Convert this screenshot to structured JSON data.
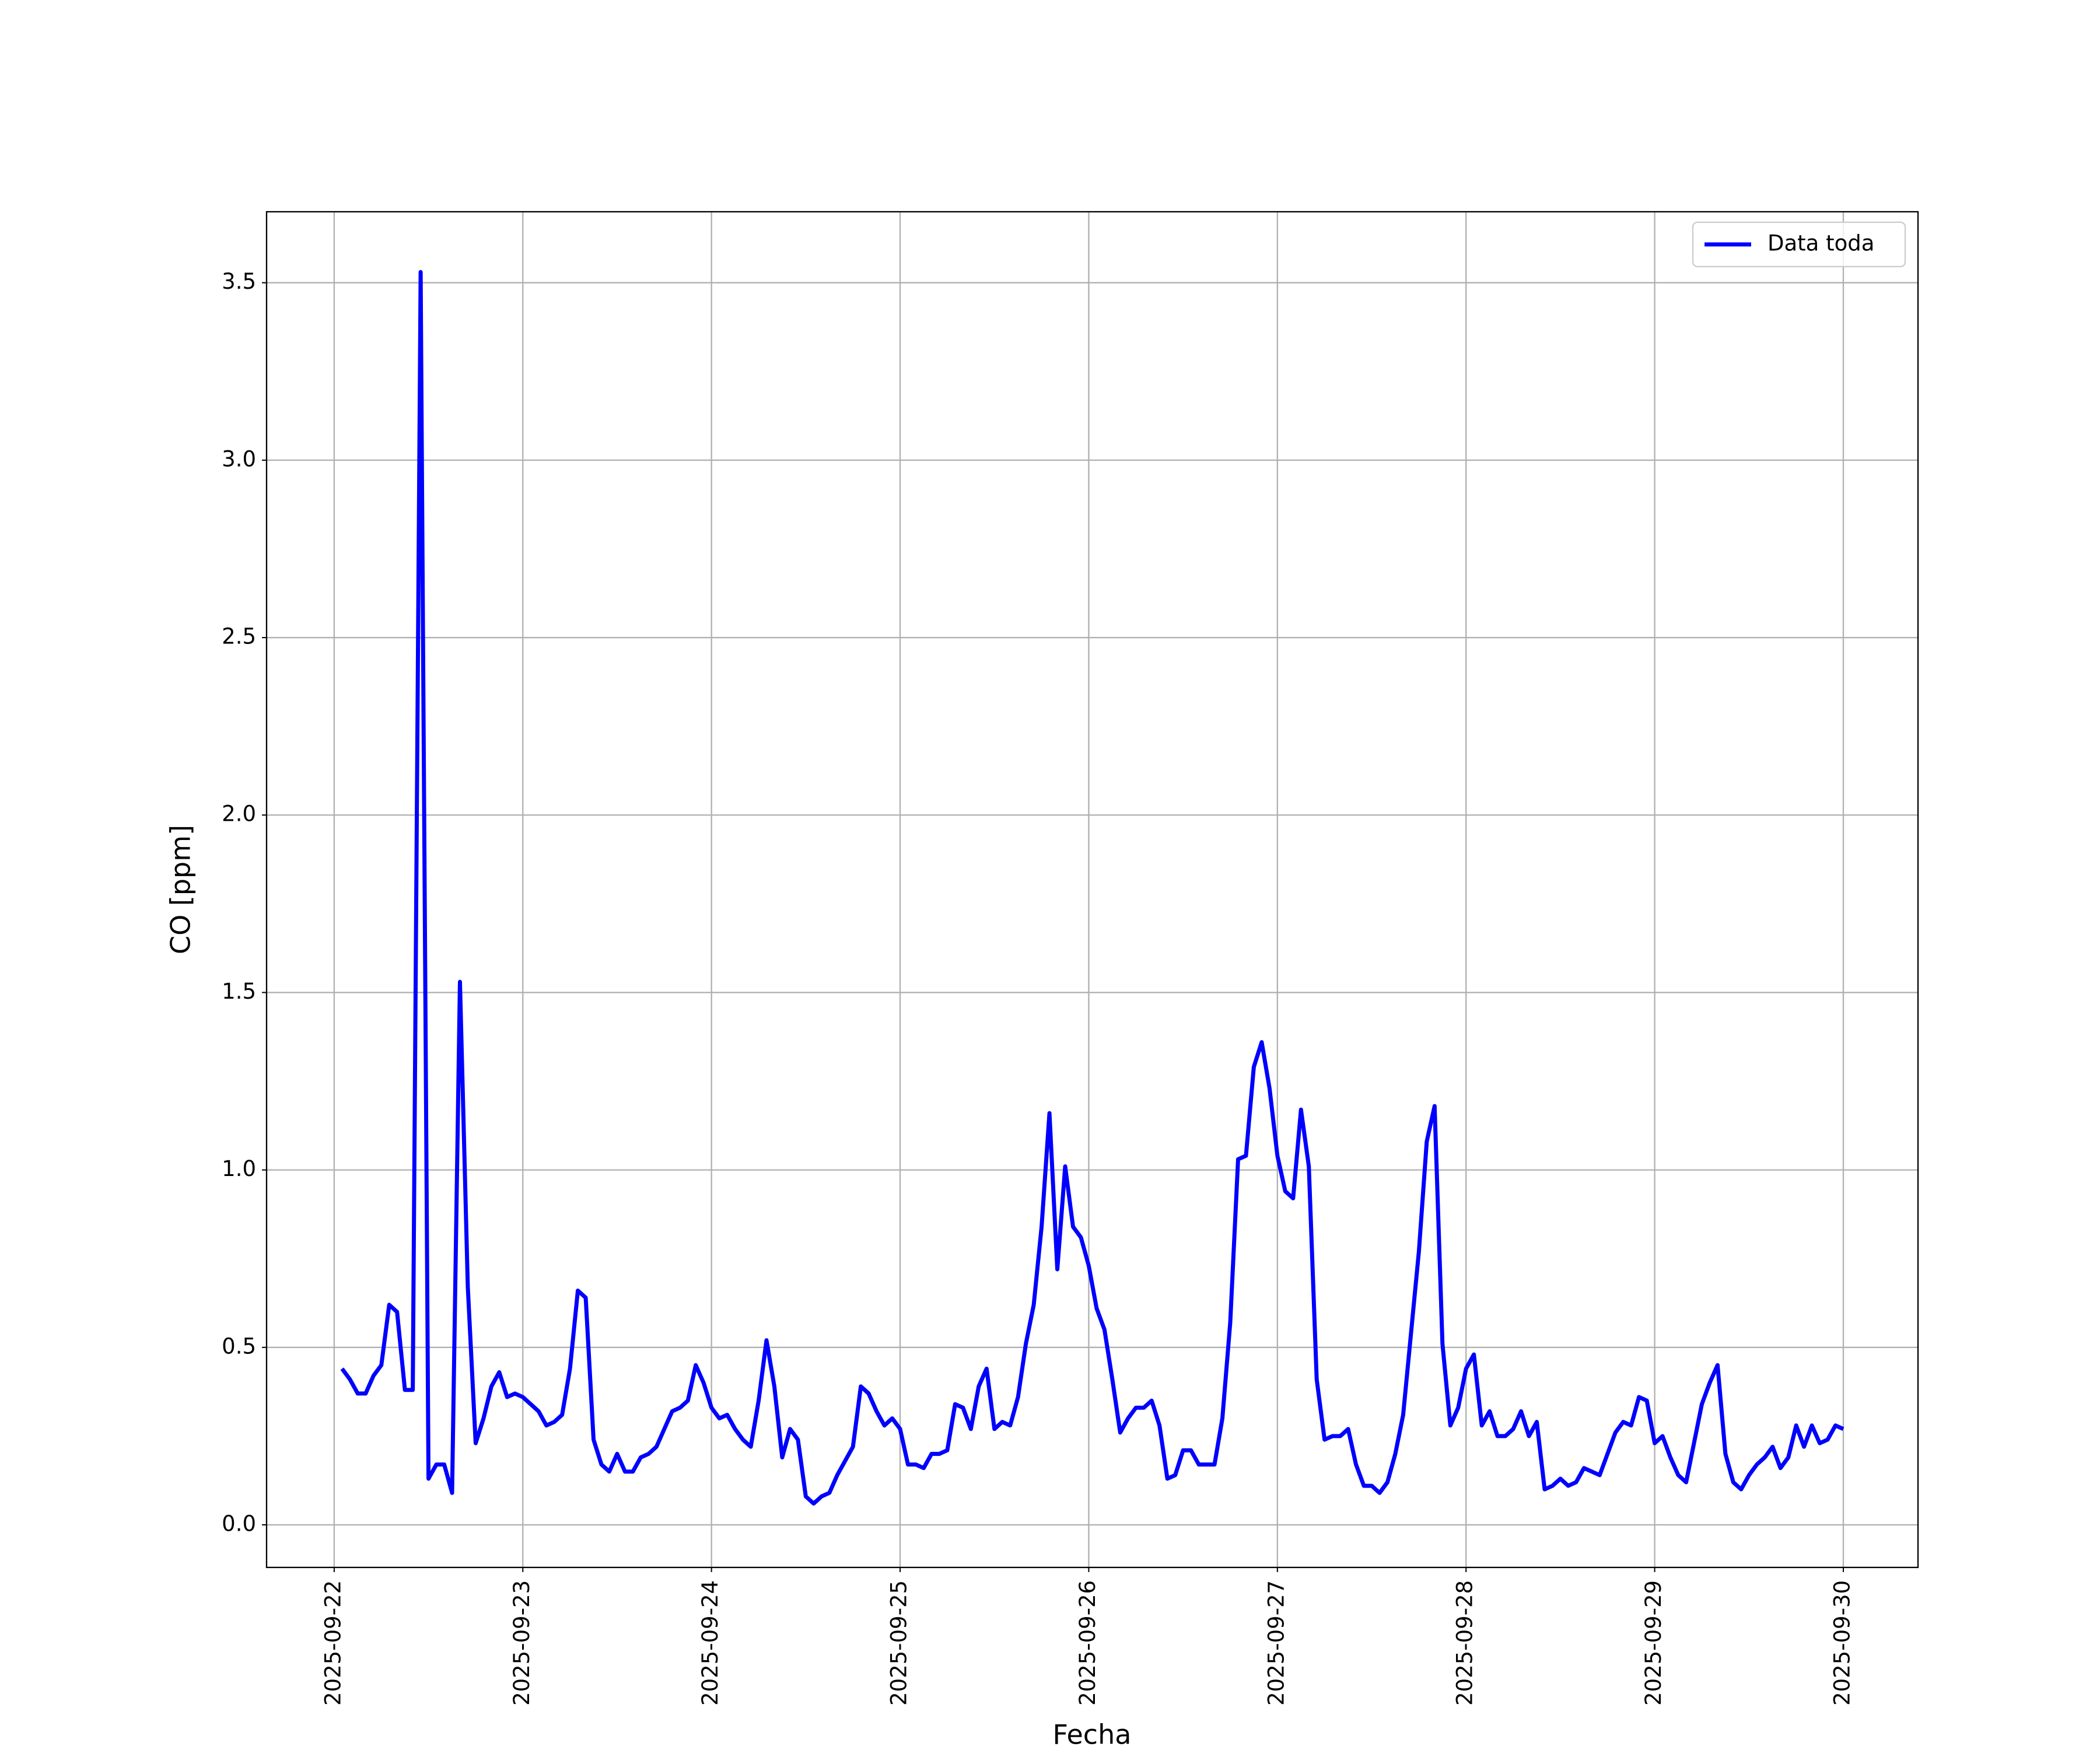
{
  "chart_data": {
    "type": "line",
    "xlabel": "Fecha",
    "ylabel": "CO [ppm]",
    "x": [
      1,
      2,
      3,
      4,
      5,
      6,
      7,
      8,
      9,
      10,
      11,
      12,
      13,
      14,
      15,
      16,
      17,
      18,
      19,
      20,
      21,
      22,
      23,
      24,
      25,
      26,
      27,
      28,
      29,
      30,
      31,
      32,
      33,
      34,
      35,
      36,
      37,
      38,
      39,
      40,
      41,
      42,
      43,
      44,
      45,
      46,
      47,
      48,
      49,
      50,
      51,
      52,
      53,
      54,
      55,
      56,
      57,
      58,
      59,
      60,
      61,
      62,
      63,
      64,
      65,
      66,
      67,
      68,
      69,
      70,
      71,
      72,
      73,
      74,
      75,
      76,
      77,
      78,
      79,
      80,
      81,
      82,
      83,
      84,
      85,
      86,
      87,
      88,
      89,
      90,
      91,
      92,
      93,
      94,
      95,
      96,
      97,
      98,
      99,
      100,
      101,
      102,
      103,
      104,
      105,
      106,
      107,
      108,
      109,
      110,
      111,
      112,
      113,
      114,
      115,
      116,
      117,
      118,
      119,
      120,
      121,
      122,
      123,
      124,
      125,
      126,
      127,
      128,
      129,
      130,
      131,
      132,
      133,
      134,
      135,
      136,
      137,
      138,
      139,
      140,
      141,
      142,
      143,
      144,
      145,
      146,
      147,
      148,
      149,
      150,
      151,
      152,
      153,
      154,
      155,
      156,
      157,
      158,
      159,
      160,
      161,
      162,
      163,
      164,
      165,
      166,
      167,
      168,
      169,
      170,
      171,
      172,
      173,
      174,
      175,
      176,
      177,
      178,
      179,
      180,
      181,
      182,
      183,
      184,
      185,
      186,
      187,
      188,
      189,
      190,
      191,
      192
    ],
    "series": [
      {
        "name": "Data toda",
        "color": "#0000ff",
        "values": [
          0.44,
          0.41,
          0.37,
          0.37,
          0.42,
          0.45,
          0.62,
          0.6,
          0.38,
          0.38,
          3.53,
          0.13,
          0.17,
          0.17,
          0.09,
          1.53,
          0.67,
          0.23,
          0.3,
          0.39,
          0.43,
          0.36,
          0.37,
          0.36,
          0.34,
          0.32,
          0.28,
          0.29,
          0.31,
          0.44,
          0.66,
          0.64,
          0.24,
          0.17,
          0.15,
          0.2,
          0.15,
          0.15,
          0.19,
          0.2,
          0.22,
          0.27,
          0.32,
          0.33,
          0.35,
          0.45,
          0.4,
          0.33,
          0.3,
          0.31,
          0.27,
          0.24,
          0.22,
          0.35,
          0.52,
          0.39,
          0.19,
          0.27,
          0.24,
          0.08,
          0.06,
          0.08,
          0.09,
          0.14,
          0.18,
          0.22,
          0.39,
          0.37,
          0.32,
          0.28,
          0.3,
          0.27,
          0.17,
          0.17,
          0.16,
          0.2,
          0.2,
          0.21,
          0.34,
          0.33,
          0.27,
          0.39,
          0.44,
          0.27,
          0.29,
          0.28,
          0.36,
          0.51,
          0.62,
          0.84,
          1.16,
          0.72,
          1.01,
          0.84,
          0.81,
          0.73,
          0.61,
          0.55,
          0.41,
          0.26,
          0.3,
          0.33,
          0.33,
          0.35,
          0.28,
          0.13,
          0.14,
          0.21,
          0.21,
          0.17,
          0.17,
          0.17,
          0.3,
          0.57,
          1.03,
          1.04,
          1.29,
          1.36,
          1.23,
          1.04,
          0.94,
          0.92,
          1.17,
          1.01,
          0.41,
          0.24,
          0.25,
          0.25,
          0.27,
          0.17,
          0.11,
          0.11,
          0.09,
          0.12,
          0.2,
          0.31,
          0.54,
          0.77,
          1.08,
          1.18,
          0.51,
          0.28,
          0.33,
          0.44,
          0.48,
          0.28,
          0.32,
          0.25,
          0.25,
          0.27,
          0.32,
          0.25,
          0.29,
          0.1,
          0.11,
          0.13,
          0.11,
          0.12,
          0.16,
          0.15,
          0.14,
          0.2,
          0.26,
          0.29,
          0.28,
          0.36,
          0.35,
          0.23,
          0.25,
          0.19,
          0.14,
          0.12,
          0.23,
          0.34,
          0.4,
          0.45,
          0.2,
          0.12,
          0.1,
          0.14,
          0.17,
          0.19,
          0.22,
          0.16,
          0.19,
          0.28,
          0.22,
          0.28,
          0.23,
          0.24,
          0.28,
          0.27
        ]
      }
    ],
    "xlim": [
      -8.6,
      201.5
    ],
    "xticks": [
      {
        "value": 0,
        "label": "2025-09-22"
      },
      {
        "value": 24,
        "label": "2025-09-23"
      },
      {
        "value": 48,
        "label": "2025-09-24"
      },
      {
        "value": 72,
        "label": "2025-09-25"
      },
      {
        "value": 96,
        "label": "2025-09-26"
      },
      {
        "value": 120,
        "label": "2025-09-27"
      },
      {
        "value": 144,
        "label": "2025-09-28"
      },
      {
        "value": 168,
        "label": "2025-09-29"
      },
      {
        "value": 192,
        "label": "2025-09-30"
      }
    ],
    "ylim": [
      -0.12,
      3.7
    ],
    "yticks": [
      {
        "value": 0,
        "label": "0.0"
      },
      0.5,
      {
        "value": 1,
        "label": "1.0"
      },
      1.5,
      {
        "value": 2,
        "label": "2.0"
      },
      2.5,
      {
        "value": 3,
        "label": "3.0"
      },
      3.5
    ],
    "grid": true,
    "legend": "upper right"
  }
}
